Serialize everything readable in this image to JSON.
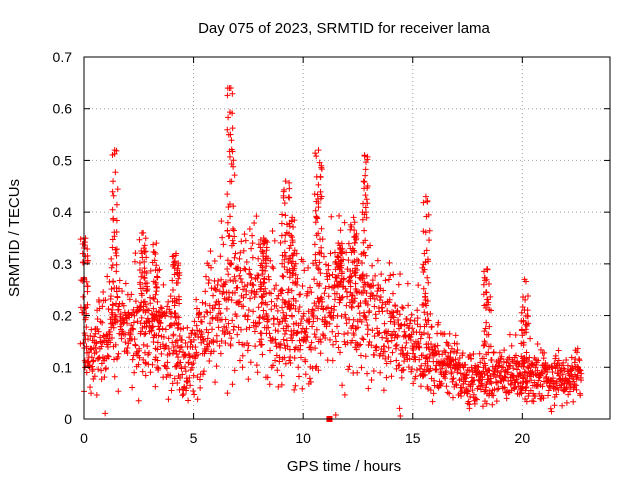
{
  "chart_data": {
    "type": "scatter",
    "title": "Day 075 of 2023, SRMTID for receiver lama",
    "xlabel": "GPS time / hours",
    "ylabel": "SRMTID / TECUs",
    "xlim": [
      0,
      24
    ],
    "ylim": [
      0,
      0.7
    ],
    "xticks": [
      0,
      5,
      10,
      15,
      20
    ],
    "yticks": [
      0,
      0.1,
      0.2,
      0.3,
      0.4,
      0.5,
      0.6,
      0.7
    ],
    "grid": true,
    "marker": "+",
    "color": "#ff0000",
    "baseline_trend": [
      {
        "t": 0.0,
        "v": 0.13
      },
      {
        "t": 1.0,
        "v": 0.16
      },
      {
        "t": 2.0,
        "v": 0.19
      },
      {
        "t": 3.0,
        "v": 0.18
      },
      {
        "t": 4.0,
        "v": 0.15
      },
      {
        "t": 4.5,
        "v": 0.11
      },
      {
        "t": 5.0,
        "v": 0.13
      },
      {
        "t": 6.0,
        "v": 0.2
      },
      {
        "t": 7.0,
        "v": 0.23
      },
      {
        "t": 8.0,
        "v": 0.22
      },
      {
        "t": 9.0,
        "v": 0.19
      },
      {
        "t": 10.0,
        "v": 0.18
      },
      {
        "t": 11.0,
        "v": 0.22
      },
      {
        "t": 12.0,
        "v": 0.23
      },
      {
        "t": 13.0,
        "v": 0.19
      },
      {
        "t": 14.0,
        "v": 0.16
      },
      {
        "t": 15.0,
        "v": 0.14
      },
      {
        "t": 16.0,
        "v": 0.12
      },
      {
        "t": 17.0,
        "v": 0.09
      },
      {
        "t": 18.0,
        "v": 0.07
      },
      {
        "t": 19.0,
        "v": 0.09
      },
      {
        "t": 20.0,
        "v": 0.09
      },
      {
        "t": 21.0,
        "v": 0.08
      },
      {
        "t": 22.0,
        "v": 0.07
      },
      {
        "t": 22.7,
        "v": 0.09
      }
    ],
    "spikes": [
      {
        "t": 0.0,
        "peak": 0.35
      },
      {
        "t": 1.4,
        "peak": 0.52
      },
      {
        "t": 2.7,
        "peak": 0.36
      },
      {
        "t": 3.3,
        "peak": 0.34
      },
      {
        "t": 4.2,
        "peak": 0.32
      },
      {
        "t": 6.7,
        "peak": 0.64
      },
      {
        "t": 8.2,
        "peak": 0.35
      },
      {
        "t": 9.2,
        "peak": 0.46
      },
      {
        "t": 9.5,
        "peak": 0.39
      },
      {
        "t": 10.7,
        "peak": 0.52
      },
      {
        "t": 11.6,
        "peak": 0.34
      },
      {
        "t": 12.3,
        "peak": 0.39
      },
      {
        "t": 12.8,
        "peak": 0.51
      },
      {
        "t": 15.6,
        "peak": 0.43
      },
      {
        "t": 18.4,
        "peak": 0.29
      },
      {
        "t": 20.1,
        "peak": 0.27
      }
    ],
    "outliers": [
      {
        "t": 11.2,
        "v": 0.0
      }
    ]
  }
}
